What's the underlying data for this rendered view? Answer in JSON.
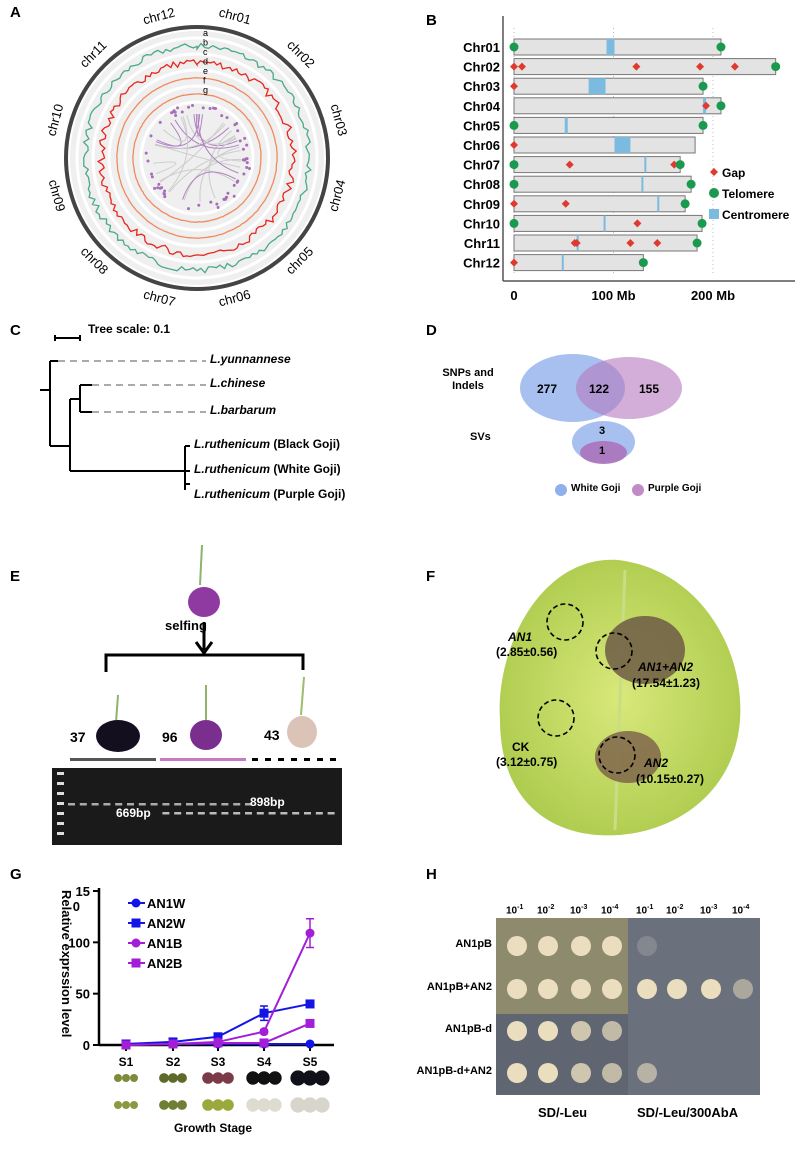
{
  "panel_labels": {
    "A": "A",
    "B": "B",
    "C": "C",
    "D": "D",
    "E": "E",
    "F": "F",
    "G": "G",
    "H": "H"
  },
  "panelA": {
    "chromosomes": [
      "chr01",
      "chr02",
      "chr03",
      "chr04",
      "chr05",
      "chr06",
      "chr07",
      "chr08",
      "chr09",
      "chr10",
      "chr11",
      "chr12"
    ],
    "tracks": [
      "a",
      "b",
      "c",
      "d",
      "e",
      "f",
      "g"
    ],
    "colors": {
      "track_b": "#4aa98c",
      "track_c": "#e8261c",
      "track_e": "#f08a5d",
      "track_g": "#a66fb5"
    }
  },
  "panelB": {
    "chart_data": {
      "type": "chromosome-ideogram",
      "x_unit": "Mb",
      "x_ticks": [
        "0",
        "100 Mb",
        "200 Mb"
      ],
      "x_tick_values": [
        0,
        100,
        200
      ],
      "legend": [
        {
          "label": "Gap",
          "color": "#e03a2f"
        },
        {
          "label": "Telomere",
          "color": "#1a9a4e"
        },
        {
          "label": "Centromere",
          "color": "#7bbbe0"
        }
      ],
      "chromosomes": [
        {
          "name": "Chr01",
          "length": 208,
          "centromere": [
            93,
            101
          ],
          "gaps": [],
          "telomeres": [
            0,
            208
          ]
        },
        {
          "name": "Chr02",
          "length": 263,
          "centromere": null,
          "gaps": [
            0,
            8,
            123,
            187,
            222
          ],
          "telomeres": [
            263
          ]
        },
        {
          "name": "Chr03",
          "length": 190,
          "centromere": [
            75,
            92
          ],
          "gaps": [
            0
          ],
          "telomeres": [
            190
          ]
        },
        {
          "name": "Chr04",
          "length": 208,
          "centromere": [
            190,
            193
          ],
          "gaps": [
            193
          ],
          "telomeres": [
            208
          ]
        },
        {
          "name": "Chr05",
          "length": 190,
          "centromere": [
            51,
            54
          ],
          "gaps": [],
          "telomeres": [
            0,
            190
          ]
        },
        {
          "name": "Chr06",
          "length": 182,
          "centromere": [
            101,
            117
          ],
          "gaps": [
            0
          ],
          "telomeres": []
        },
        {
          "name": "Chr07",
          "length": 167,
          "centromere": [
            131,
            133
          ],
          "gaps": [
            56,
            161
          ],
          "telomeres": [
            0,
            167
          ]
        },
        {
          "name": "Chr08",
          "length": 178,
          "centromere": [
            128,
            130
          ],
          "gaps": [],
          "telomeres": [
            0,
            178
          ]
        },
        {
          "name": "Chr09",
          "length": 172,
          "centromere": [
            144,
            145
          ],
          "gaps": [
            0,
            52
          ],
          "telomeres": [
            172
          ]
        },
        {
          "name": "Chr10",
          "length": 189,
          "centromere": [
            90,
            92
          ],
          "gaps": [
            124
          ],
          "telomeres": [
            0,
            189
          ]
        },
        {
          "name": "Chr11",
          "length": 184,
          "centromere": [
            63,
            64
          ],
          "gaps": [
            61,
            63,
            117,
            144
          ],
          "telomeres": [
            184
          ]
        },
        {
          "name": "Chr12",
          "length": 130,
          "centromere": [
            48,
            50
          ],
          "gaps": [
            0
          ],
          "telomeres": [
            130
          ]
        }
      ]
    }
  },
  "panelC": {
    "tree_scale": "Tree scale: 0.1",
    "taxa": [
      {
        "species": "L.yunnannese",
        "note": ""
      },
      {
        "species": "L.chinese",
        "note": ""
      },
      {
        "species": "L.barbarum",
        "note": ""
      },
      {
        "species": "L.ruthenicum",
        "note": " (Black Goji)"
      },
      {
        "species": "L.ruthenicum",
        "note": " (White Goji)"
      },
      {
        "species": "L.ruthenicum",
        "note": " (Purple Goji)"
      }
    ]
  },
  "panelD": {
    "rows": [
      {
        "label": "SNPs and Indels",
        "left": "277",
        "overlap": "122",
        "right": "155"
      },
      {
        "label": "SVs",
        "left": "3",
        "overlap": "1",
        "right": ""
      }
    ],
    "legend": [
      {
        "label": "White Goji",
        "color": "#8fb0ea"
      },
      {
        "label": "Purple Goji",
        "color": "#c08bc6"
      }
    ]
  },
  "panelE": {
    "selfing": "selfing",
    "counts": [
      "37",
      "96",
      "43"
    ],
    "bands": [
      "669bp",
      "898bp"
    ]
  },
  "panelF": {
    "spots": [
      {
        "name": "AN1",
        "value": "(2.85±0.56)"
      },
      {
        "name": "AN1+AN2",
        "value": "(17.54±1.23)"
      },
      {
        "name": "CK",
        "value": "(3.12±0.75)"
      },
      {
        "name": "AN2",
        "value": "(10.15±0.27)"
      }
    ]
  },
  "panelG": {
    "chart_data": {
      "type": "line",
      "xlabel": "Growth Stage",
      "ylabel": "Relative exprssion level",
      "categories": [
        "S1",
        "S2",
        "S3",
        "S4",
        "S5"
      ],
      "ylim": [
        0,
        150
      ],
      "y_ticks": [
        "0",
        "50",
        "100",
        "15\n0"
      ],
      "y_tick_values": [
        0,
        50,
        100,
        150
      ],
      "legend_position": "top-left",
      "series": [
        {
          "name": "AN1W",
          "color": "#1414e6",
          "marker": "circle",
          "values": [
            1,
            1,
            1,
            1,
            1
          ],
          "errors": [
            0,
            0,
            0,
            0,
            0
          ]
        },
        {
          "name": "AN2W",
          "color": "#1414e6",
          "marker": "square",
          "values": [
            1,
            3,
            8,
            31,
            40
          ],
          "errors": [
            0,
            0,
            1,
            7,
            3
          ]
        },
        {
          "name": "AN1B",
          "color": "#a21ed8",
          "marker": "circle",
          "values": [
            0,
            1,
            3,
            13,
            109
          ],
          "errors": [
            0,
            0,
            0,
            2,
            14
          ]
        },
        {
          "name": "AN2B",
          "color": "#a21ed8",
          "marker": "square",
          "values": [
            0,
            1,
            2,
            2,
            21
          ],
          "errors": [
            0,
            0,
            0,
            0,
            1
          ]
        }
      ]
    }
  },
  "panelH": {
    "dilutions": [
      "10",
      "-1",
      "10",
      "-2",
      "10",
      "-3",
      "10",
      "-4"
    ],
    "strains": [
      "AN1pB",
      "AN1pB+AN2",
      "AN1pB-d",
      "AN1pB-d+AN2"
    ],
    "media": [
      "SD/-Leu",
      "SD/-Leu/300AbA"
    ]
  }
}
